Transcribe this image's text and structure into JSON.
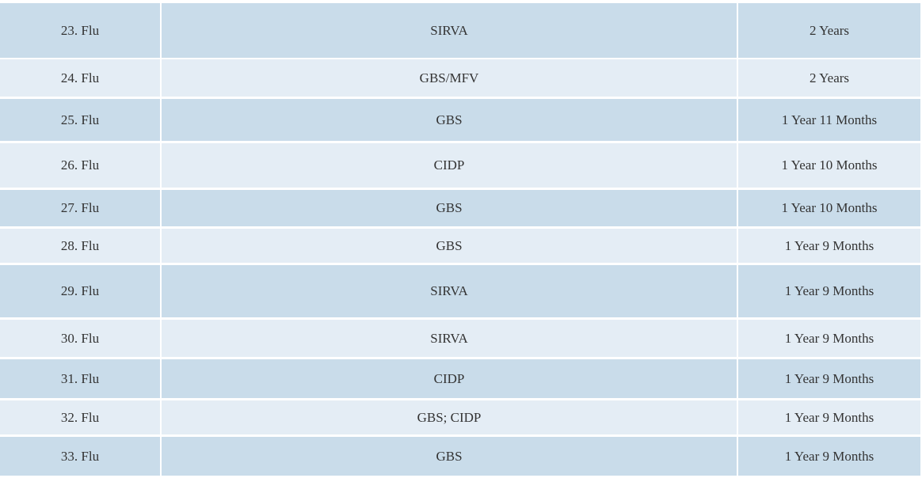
{
  "table": {
    "rows": [
      [
        "23. Flu",
        "SIRVA",
        "2 Years"
      ],
      [
        "24. Flu",
        "GBS/MFV",
        "2 Years"
      ],
      [
        "25. Flu",
        "GBS",
        "1 Year 11 Months"
      ],
      [
        "26. Flu",
        "CIDP",
        "1 Year 10 Months"
      ],
      [
        "27. Flu",
        "GBS",
        "1 Year 10 Months"
      ],
      [
        "28. Flu",
        "GBS",
        "1 Year 9 Months"
      ],
      [
        "29. Flu",
        "SIRVA",
        "1 Year 9 Months"
      ],
      [
        "30. Flu",
        "SIRVA",
        "1 Year 9 Months"
      ],
      [
        "31. Flu",
        "CIDP",
        "1 Year 9 Months"
      ],
      [
        "32. Flu",
        "GBS; CIDP",
        "1 Year 9 Months"
      ],
      [
        "33. Flu",
        "GBS",
        "1 Year 9 Months"
      ]
    ]
  }
}
